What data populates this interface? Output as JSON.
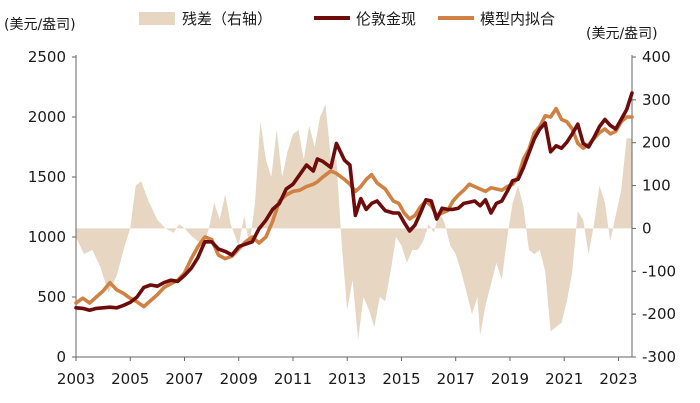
{
  "chart_data": {
    "type": "line",
    "title": "",
    "left_axis_unit": "(美元/盎司)",
    "right_axis_unit": "(美元/盎司)",
    "x_ticks": [
      "2003",
      "2005",
      "2007",
      "2009",
      "2011",
      "2013",
      "2015",
      "2017",
      "2019",
      "2021",
      "2023"
    ],
    "x_range": [
      2003,
      2023.5
    ],
    "left_ticks": [
      "0",
      "500",
      "1000",
      "1500",
      "2000",
      "2500"
    ],
    "left_range": [
      0,
      2500
    ],
    "right_ticks": [
      "-300",
      "-200",
      "-100",
      "0",
      "100",
      "200",
      "300",
      "400"
    ],
    "right_range": [
      -300,
      400
    ],
    "legend": {
      "residual_label": "残差（右轴）",
      "actual_label": "伦敦金现",
      "fitted_label": "模型内拟合"
    },
    "colors": {
      "residual": "#e6d6c2",
      "actual": "#6e0b0b",
      "fitted": "#cf8243",
      "axis": "#666666"
    },
    "series": [
      {
        "name": "伦敦金现",
        "axis": "left",
        "points": [
          [
            2003.0,
            410
          ],
          [
            2003.25,
            405
          ],
          [
            2003.5,
            390
          ],
          [
            2003.75,
            405
          ],
          [
            2004.0,
            410
          ],
          [
            2004.25,
            415
          ],
          [
            2004.5,
            410
          ],
          [
            2004.75,
            430
          ],
          [
            2005.0,
            455
          ],
          [
            2005.25,
            500
          ],
          [
            2005.5,
            580
          ],
          [
            2005.75,
            600
          ],
          [
            2006.0,
            590
          ],
          [
            2006.25,
            620
          ],
          [
            2006.5,
            640
          ],
          [
            2006.75,
            630
          ],
          [
            2007.0,
            680
          ],
          [
            2007.25,
            740
          ],
          [
            2007.5,
            830
          ],
          [
            2007.75,
            960
          ],
          [
            2008.0,
            960
          ],
          [
            2008.25,
            900
          ],
          [
            2008.5,
            880
          ],
          [
            2008.75,
            850
          ],
          [
            2009.0,
            920
          ],
          [
            2009.25,
            940
          ],
          [
            2009.5,
            960
          ],
          [
            2009.75,
            1070
          ],
          [
            2010.0,
            1140
          ],
          [
            2010.25,
            1230
          ],
          [
            2010.5,
            1280
          ],
          [
            2010.75,
            1400
          ],
          [
            2011.0,
            1440
          ],
          [
            2011.25,
            1520
          ],
          [
            2011.5,
            1600
          ],
          [
            2011.75,
            1550
          ],
          [
            2011.9,
            1650
          ],
          [
            2012.1,
            1630
          ],
          [
            2012.4,
            1580
          ],
          [
            2012.6,
            1780
          ],
          [
            2012.9,
            1640
          ],
          [
            2013.1,
            1600
          ],
          [
            2013.3,
            1180
          ],
          [
            2013.5,
            1320
          ],
          [
            2013.7,
            1230
          ],
          [
            2013.9,
            1280
          ],
          [
            2014.1,
            1300
          ],
          [
            2014.4,
            1220
          ],
          [
            2014.7,
            1200
          ],
          [
            2014.9,
            1200
          ],
          [
            2015.1,
            1120
          ],
          [
            2015.3,
            1050
          ],
          [
            2015.5,
            1100
          ],
          [
            2015.7,
            1200
          ],
          [
            2015.9,
            1310
          ],
          [
            2016.1,
            1300
          ],
          [
            2016.3,
            1150
          ],
          [
            2016.5,
            1240
          ],
          [
            2016.7,
            1230
          ],
          [
            2016.9,
            1230
          ],
          [
            2017.1,
            1240
          ],
          [
            2017.3,
            1280
          ],
          [
            2017.5,
            1290
          ],
          [
            2017.7,
            1300
          ],
          [
            2017.9,
            1260
          ],
          [
            2018.1,
            1310
          ],
          [
            2018.3,
            1200
          ],
          [
            2018.5,
            1280
          ],
          [
            2018.7,
            1300
          ],
          [
            2018.9,
            1380
          ],
          [
            2019.1,
            1470
          ],
          [
            2019.3,
            1480
          ],
          [
            2019.5,
            1580
          ],
          [
            2019.7,
            1700
          ],
          [
            2019.9,
            1820
          ],
          [
            2020.1,
            1900
          ],
          [
            2020.3,
            1950
          ],
          [
            2020.5,
            1710
          ],
          [
            2020.7,
            1760
          ],
          [
            2020.9,
            1740
          ],
          [
            2021.1,
            1790
          ],
          [
            2021.3,
            1860
          ],
          [
            2021.5,
            1940
          ],
          [
            2021.7,
            1780
          ],
          [
            2021.9,
            1750
          ],
          [
            2022.1,
            1830
          ],
          [
            2022.3,
            1920
          ],
          [
            2022.5,
            1980
          ],
          [
            2022.7,
            1930
          ],
          [
            2022.9,
            1900
          ],
          [
            2023.1,
            1980
          ],
          [
            2023.3,
            2060
          ],
          [
            2023.5,
            2200
          ]
        ]
      },
      {
        "name": "模型内拟合",
        "axis": "left",
        "points": [
          [
            2003.0,
            450
          ],
          [
            2003.25,
            490
          ],
          [
            2003.5,
            450
          ],
          [
            2003.75,
            500
          ],
          [
            2004.0,
            550
          ],
          [
            2004.25,
            620
          ],
          [
            2004.5,
            560
          ],
          [
            2004.75,
            530
          ],
          [
            2005.0,
            490
          ],
          [
            2005.25,
            460
          ],
          [
            2005.5,
            420
          ],
          [
            2005.75,
            470
          ],
          [
            2006.0,
            520
          ],
          [
            2006.25,
            580
          ],
          [
            2006.5,
            610
          ],
          [
            2006.75,
            640
          ],
          [
            2007.0,
            700
          ],
          [
            2007.25,
            820
          ],
          [
            2007.5,
            920
          ],
          [
            2007.75,
            1000
          ],
          [
            2008.0,
            980
          ],
          [
            2008.25,
            850
          ],
          [
            2008.5,
            820
          ],
          [
            2008.75,
            840
          ],
          [
            2009.0,
            900
          ],
          [
            2009.25,
            960
          ],
          [
            2009.5,
            1000
          ],
          [
            2009.75,
            950
          ],
          [
            2010.0,
            1000
          ],
          [
            2010.25,
            1130
          ],
          [
            2010.5,
            1300
          ],
          [
            2010.75,
            1350
          ],
          [
            2011.0,
            1380
          ],
          [
            2011.25,
            1390
          ],
          [
            2011.5,
            1420
          ],
          [
            2011.75,
            1440
          ],
          [
            2011.9,
            1460
          ],
          [
            2012.1,
            1500
          ],
          [
            2012.4,
            1550
          ],
          [
            2012.6,
            1530
          ],
          [
            2012.9,
            1480
          ],
          [
            2013.1,
            1440
          ],
          [
            2013.3,
            1380
          ],
          [
            2013.5,
            1420
          ],
          [
            2013.7,
            1480
          ],
          [
            2013.9,
            1520
          ],
          [
            2014.1,
            1450
          ],
          [
            2014.4,
            1400
          ],
          [
            2014.7,
            1300
          ],
          [
            2014.9,
            1280
          ],
          [
            2015.1,
            1200
          ],
          [
            2015.3,
            1150
          ],
          [
            2015.5,
            1180
          ],
          [
            2015.7,
            1250
          ],
          [
            2015.9,
            1300
          ],
          [
            2016.1,
            1260
          ],
          [
            2016.3,
            1180
          ],
          [
            2016.5,
            1200
          ],
          [
            2016.7,
            1220
          ],
          [
            2016.9,
            1300
          ],
          [
            2017.1,
            1350
          ],
          [
            2017.3,
            1390
          ],
          [
            2017.5,
            1440
          ],
          [
            2017.7,
            1420
          ],
          [
            2017.9,
            1400
          ],
          [
            2018.1,
            1380
          ],
          [
            2018.3,
            1410
          ],
          [
            2018.5,
            1400
          ],
          [
            2018.7,
            1390
          ],
          [
            2018.9,
            1420
          ],
          [
            2019.1,
            1440
          ],
          [
            2019.3,
            1500
          ],
          [
            2019.5,
            1650
          ],
          [
            2019.7,
            1730
          ],
          [
            2019.9,
            1870
          ],
          [
            2020.1,
            1920
          ],
          [
            2020.3,
            2010
          ],
          [
            2020.5,
            2000
          ],
          [
            2020.7,
            2070
          ],
          [
            2020.9,
            1980
          ],
          [
            2021.1,
            1960
          ],
          [
            2021.3,
            1900
          ],
          [
            2021.5,
            1780
          ],
          [
            2021.7,
            1740
          ],
          [
            2021.9,
            1770
          ],
          [
            2022.1,
            1820
          ],
          [
            2022.3,
            1870
          ],
          [
            2022.5,
            1900
          ],
          [
            2022.7,
            1860
          ],
          [
            2022.9,
            1880
          ],
          [
            2023.1,
            1960
          ],
          [
            2023.3,
            2000
          ],
          [
            2023.5,
            2000
          ]
        ]
      },
      {
        "name": "残差（右轴）",
        "axis": "right",
        "type": "area",
        "points": [
          [
            2003.0,
            -20
          ],
          [
            2003.3,
            -60
          ],
          [
            2003.6,
            -50
          ],
          [
            2003.9,
            -90
          ],
          [
            2004.2,
            -150
          ],
          [
            2004.5,
            -110
          ],
          [
            2004.8,
            -40
          ],
          [
            2005.0,
            0
          ],
          [
            2005.2,
            100
          ],
          [
            2005.4,
            110
          ],
          [
            2005.7,
            60
          ],
          [
            2006.0,
            20
          ],
          [
            2006.3,
            0
          ],
          [
            2006.6,
            -10
          ],
          [
            2006.8,
            10
          ],
          [
            2007.0,
            0
          ],
          [
            2007.3,
            -20
          ],
          [
            2007.5,
            -30
          ],
          [
            2007.7,
            -40
          ],
          [
            2007.9,
            0
          ],
          [
            2008.1,
            60
          ],
          [
            2008.3,
            20
          ],
          [
            2008.5,
            80
          ],
          [
            2008.7,
            10
          ],
          [
            2009.0,
            -40
          ],
          [
            2009.2,
            30
          ],
          [
            2009.4,
            -40
          ],
          [
            2009.6,
            60
          ],
          [
            2009.8,
            250
          ],
          [
            2010.0,
            160
          ],
          [
            2010.2,
            120
          ],
          [
            2010.4,
            230
          ],
          [
            2010.6,
            120
          ],
          [
            2010.8,
            180
          ],
          [
            2011.0,
            220
          ],
          [
            2011.2,
            230
          ],
          [
            2011.4,
            160
          ],
          [
            2011.6,
            240
          ],
          [
            2011.8,
            190
          ],
          [
            2012.0,
            260
          ],
          [
            2012.2,
            290
          ],
          [
            2012.4,
            160
          ],
          [
            2012.6,
            160
          ],
          [
            2012.8,
            -40
          ],
          [
            2013.0,
            -190
          ],
          [
            2013.2,
            -120
          ],
          [
            2013.4,
            -260
          ],
          [
            2013.6,
            -160
          ],
          [
            2013.8,
            -190
          ],
          [
            2014.0,
            -230
          ],
          [
            2014.2,
            -160
          ],
          [
            2014.4,
            -170
          ],
          [
            2014.6,
            -100
          ],
          [
            2014.8,
            -20
          ],
          [
            2015.0,
            -40
          ],
          [
            2015.2,
            -80
          ],
          [
            2015.4,
            -50
          ],
          [
            2015.6,
            -50
          ],
          [
            2015.8,
            -30
          ],
          [
            2016.0,
            10
          ],
          [
            2016.2,
            -10
          ],
          [
            2016.4,
            40
          ],
          [
            2016.6,
            10
          ],
          [
            2016.8,
            -40
          ],
          [
            2017.0,
            -60
          ],
          [
            2017.2,
            -100
          ],
          [
            2017.4,
            -150
          ],
          [
            2017.6,
            -200
          ],
          [
            2017.8,
            -160
          ],
          [
            2017.9,
            -250
          ],
          [
            2018.1,
            -180
          ],
          [
            2018.3,
            -130
          ],
          [
            2018.5,
            -80
          ],
          [
            2018.7,
            -120
          ],
          [
            2018.9,
            -20
          ],
          [
            2019.1,
            60
          ],
          [
            2019.3,
            100
          ],
          [
            2019.5,
            50
          ],
          [
            2019.7,
            -50
          ],
          [
            2019.9,
            -60
          ],
          [
            2020.1,
            -50
          ],
          [
            2020.3,
            -100
          ],
          [
            2020.5,
            -240
          ],
          [
            2020.7,
            -230
          ],
          [
            2020.9,
            -220
          ],
          [
            2021.1,
            -170
          ],
          [
            2021.3,
            -100
          ],
          [
            2021.5,
            40
          ],
          [
            2021.7,
            20
          ],
          [
            2021.9,
            -60
          ],
          [
            2022.1,
            10
          ],
          [
            2022.3,
            100
          ],
          [
            2022.5,
            60
          ],
          [
            2022.7,
            -30
          ],
          [
            2022.9,
            30
          ],
          [
            2023.1,
            90
          ],
          [
            2023.3,
            210
          ],
          [
            2023.5,
            210
          ]
        ]
      }
    ]
  }
}
